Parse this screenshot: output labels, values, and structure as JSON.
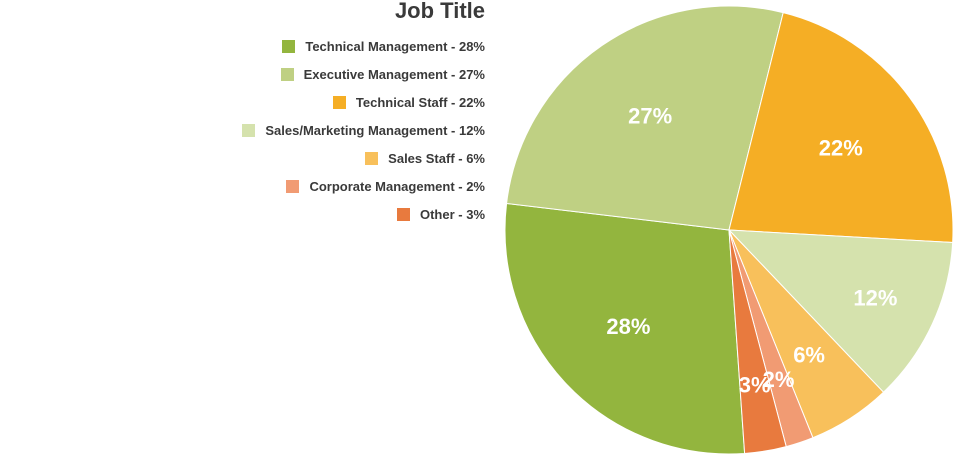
{
  "chart_data": {
    "type": "pie",
    "title": "Job Title",
    "legend_position": "left",
    "slices": [
      {
        "name": "Technical Management",
        "legend": "Technical Management - 28%",
        "value": 28,
        "label": "28%",
        "color": "#93b53e"
      },
      {
        "name": "Executive Management",
        "legend": "Executive Management - 27%",
        "value": 27,
        "label": "27%",
        "color": "#bfd083"
      },
      {
        "name": "Technical Staff",
        "legend": "Technical Staff - 22%",
        "value": 22,
        "label": "22%",
        "color": "#f5ae25"
      },
      {
        "name": "Sales/Marketing Management",
        "legend": "Sales/Marketing Management - 12%",
        "value": 12,
        "label": "12%",
        "color": "#d5e2ad"
      },
      {
        "name": "Sales Staff",
        "legend": "Sales Staff - 6%",
        "value": 6,
        "label": "6%",
        "color": "#f8c05b"
      },
      {
        "name": "Corporate Management",
        "legend": "Corporate Management - 2%",
        "value": 2,
        "label": "2%",
        "color": "#f19b73"
      },
      {
        "name": "Other",
        "legend": "Other - 3%",
        "value": 3,
        "label": "3%",
        "color": "#e87a3e"
      }
    ]
  }
}
